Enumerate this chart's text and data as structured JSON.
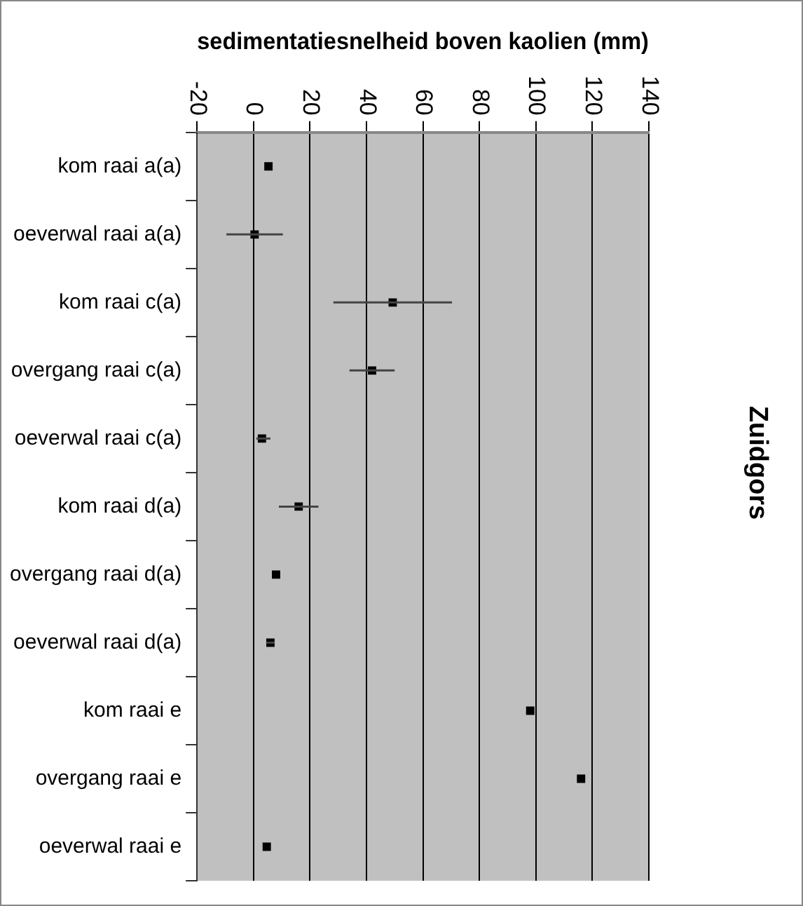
{
  "chart_data": {
    "type": "scatter",
    "xlabel": "sedimentatiesnelheid boven kaolien (mm)",
    "y2label": "Zuidgors",
    "categories": [
      "kom raai a(a)",
      "oeverwal raai a(a)",
      "kom raai c(a)",
      "overgang raai c(a)",
      "oeverwal raai c(a)",
      "kom raai d(a)",
      "overgang raai d(a)",
      "oeverwal raai d(a)",
      "kom raai e",
      "overgang raai e",
      "oeverwal raai e"
    ],
    "orientation": "horizontal",
    "series": [
      {
        "color": "#000000",
        "values": [
          5.3,
          0.4,
          49.3,
          42,
          3,
          16,
          8,
          6,
          98,
          116,
          4.7
        ],
        "errors": [
          null,
          10,
          21,
          8,
          [
            1,
            6
          ],
          [
            9,
            23
          ],
          null,
          [
            4.5,
            7.5
          ],
          null,
          null,
          null
        ]
      }
    ],
    "xlim": [
      -20,
      140
    ],
    "xticks": [
      -20,
      0,
      20,
      40,
      60,
      80,
      100,
      120,
      140
    ],
    "grid": "x",
    "legend": false,
    "marker": "square"
  }
}
